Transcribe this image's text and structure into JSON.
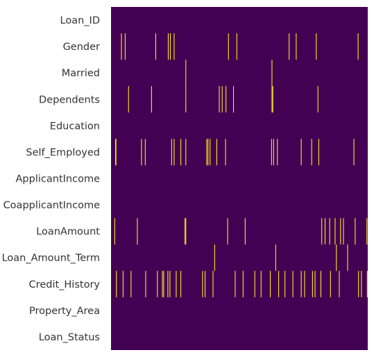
{
  "chart_data": {
    "type": "heatmap",
    "title": "",
    "xlabel": "",
    "ylabel": "",
    "n_rows": 614,
    "categories": [
      "Loan_ID",
      "Gender",
      "Married",
      "Dependents",
      "Education",
      "Self_Employed",
      "ApplicantIncome",
      "CoapplicantIncome",
      "LoanAmount",
      "Loan_Amount_Term",
      "Credit_History",
      "Property_Area",
      "Loan_Status"
    ],
    "missing_rows": {
      "Loan_ID": [],
      "Gender": [
        24,
        33,
        106,
        136,
        141,
        150,
        280,
        300,
        425,
        442,
        490,
        590
      ],
      "Married": [
        178,
        384
      ],
      "Dependents": [
        41,
        96,
        178,
        258,
        265,
        274,
        292,
        384,
        386,
        494
      ],
      "Education": [],
      "Self_Employed": [
        10,
        11,
        72,
        81,
        144,
        150,
        166,
        178,
        228,
        231,
        236,
        252,
        273,
        383,
        388,
        397,
        454,
        479,
        496,
        580
      ],
      "ApplicantIncome": [],
      "CoapplicantIncome": [],
      "LoanAmount": [
        8,
        62,
        176,
        178,
        278,
        320,
        503,
        511,
        522,
        535,
        548,
        555,
        583,
        611
      ],
      "Loan_Amount_Term": [
        247,
        393,
        538,
        565
      ],
      "Credit_History": [
        12,
        28,
        47,
        82,
        110,
        122,
        125,
        135,
        140,
        155,
        166,
        218,
        224,
        243,
        296,
        315,
        343,
        358,
        380,
        400,
        415,
        434,
        454,
        462,
        481,
        487,
        501,
        524,
        545,
        591,
        598,
        612
      ],
      "Property_Area": [],
      "Loan_Status": []
    },
    "colors": {
      "present": "#440154",
      "missing": "#fde725"
    },
    "colorbar": false,
    "grid": false,
    "legend": "none"
  }
}
